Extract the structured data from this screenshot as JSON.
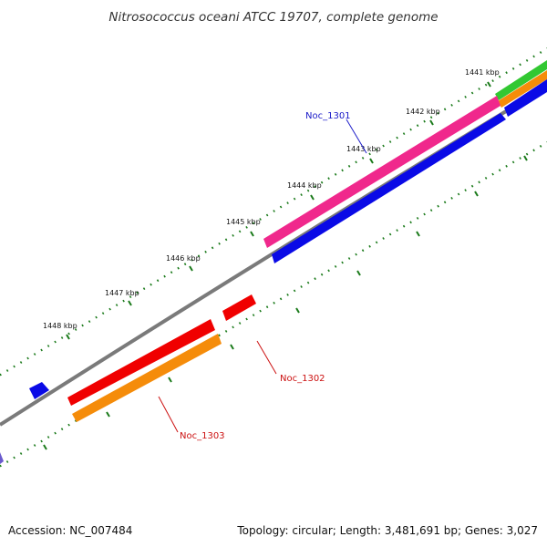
{
  "title": "Nitrosococcus oceani ATCC 19707, complete genome",
  "footer": {
    "accession": "Accession: NC_007484",
    "summary": "Topology: circular; Length: 3,481,691 bp; Genes: 3,027"
  },
  "scale": {
    "ticks": [
      {
        "label": "1441 kbp"
      },
      {
        "label": "1442 kbp"
      },
      {
        "label": "1443 kbp"
      },
      {
        "label": "1444 kbp"
      },
      {
        "label": "1445 kbp"
      },
      {
        "label": "1446 kbp"
      },
      {
        "label": "1447 kbp"
      },
      {
        "label": "1448 kbp"
      }
    ]
  },
  "genes": [
    {
      "label": "Noc_1301",
      "label_color": "#1a1ac8"
    },
    {
      "label": "Noc_1302",
      "label_color": "#cc1111"
    },
    {
      "label": "Noc_1303",
      "label_color": "#cc1111"
    }
  ],
  "colors": {
    "backbone": "#7a7a7a",
    "tick": "#1a7a1a",
    "pink": "#f0288c",
    "blue": "#0a0ae6",
    "red": "#f00000",
    "orange": "#f58c0a",
    "green": "#32c832"
  }
}
